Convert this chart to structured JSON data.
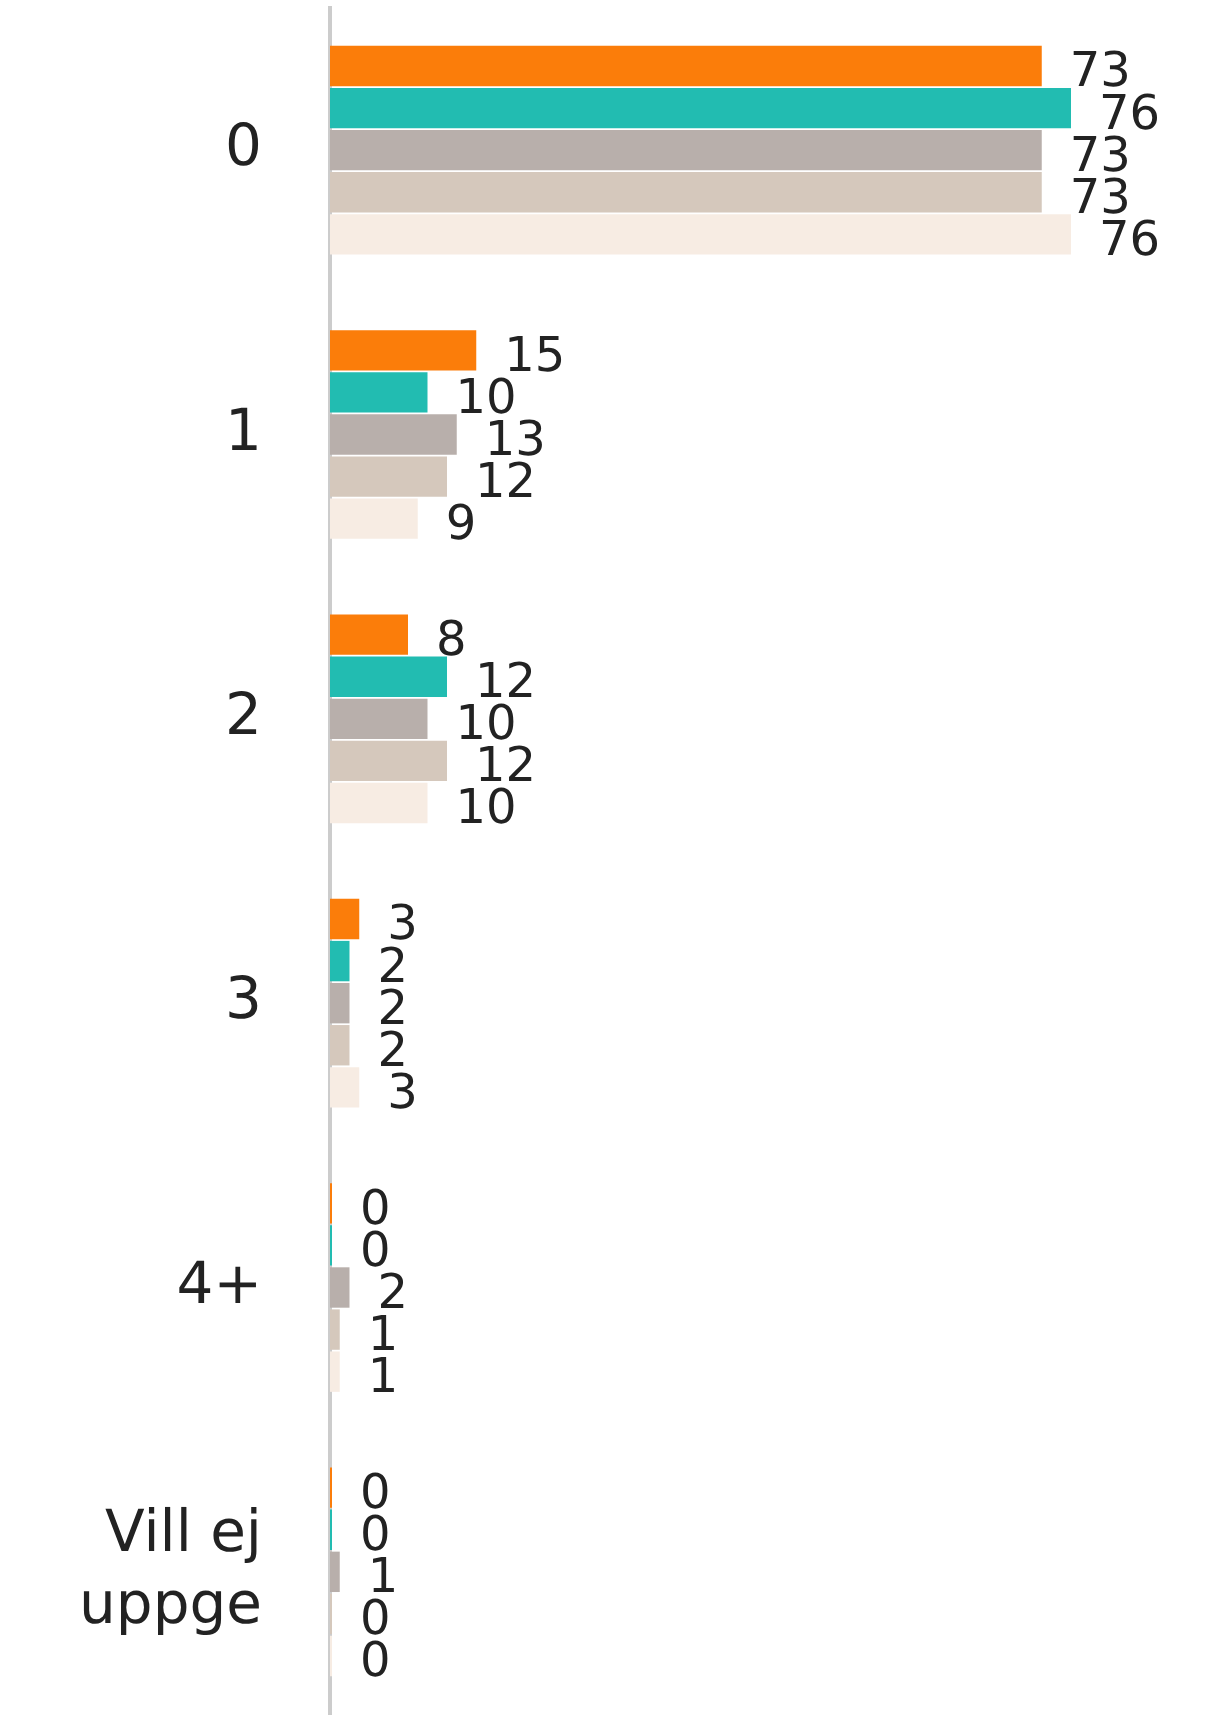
{
  "chart_data": {
    "type": "bar",
    "orientation": "horizontal",
    "categories": [
      "0",
      "1",
      "2",
      "3",
      "4+",
      "Vill ej uppge"
    ],
    "series": [
      {
        "color": "#fb7d0a",
        "values": [
          73,
          15,
          8,
          3,
          0,
          0
        ]
      },
      {
        "color": "#22bcb1",
        "values": [
          76,
          10,
          12,
          2,
          0,
          0
        ]
      },
      {
        "color": "#b8afab",
        "values": [
          73,
          13,
          10,
          2,
          2,
          1
        ]
      },
      {
        "color": "#d5c8bc",
        "values": [
          73,
          12,
          12,
          2,
          1,
          0
        ]
      },
      {
        "color": "#f7ece3",
        "values": [
          76,
          9,
          10,
          3,
          1,
          0
        ]
      }
    ],
    "data_labels": true,
    "grid": false,
    "legend": false,
    "tick_labels": "y"
  }
}
